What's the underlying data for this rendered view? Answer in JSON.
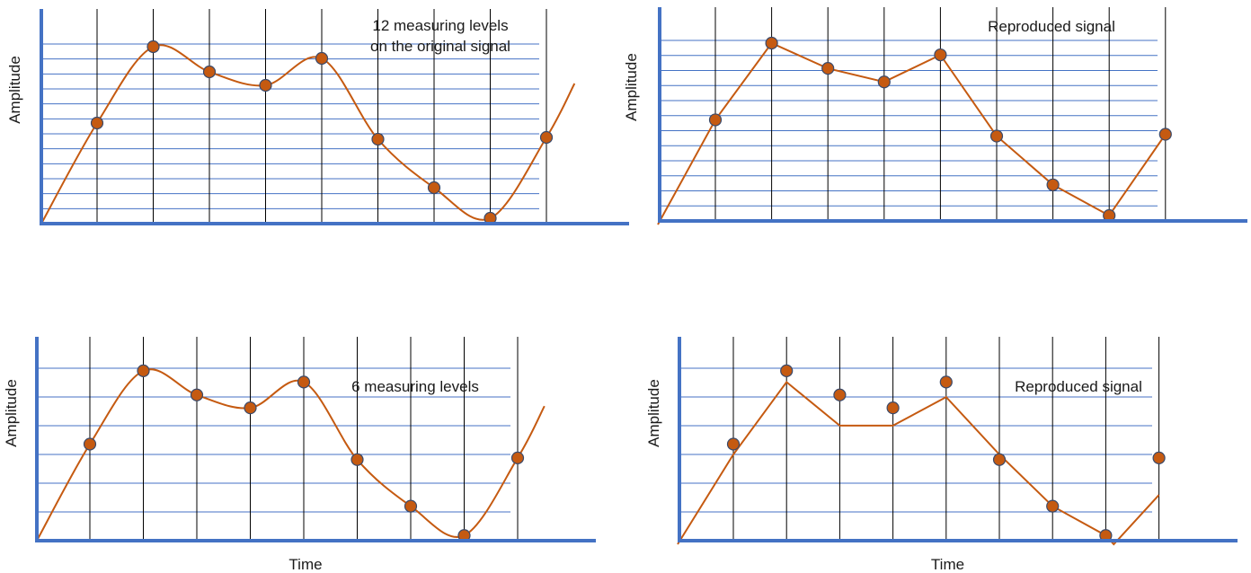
{
  "colors": {
    "axis": "#4472c4",
    "level_line": "#4472c4",
    "time_line": "#000000",
    "signal": "#c55a11",
    "marker_fill": "#c55a11",
    "marker_stroke": "#3a4a6b"
  },
  "labels": {
    "y_axis": "Amplitude",
    "x_axis": "Time"
  },
  "panels": [
    {
      "id": "original-12",
      "annotation_lines": [
        "12 measuring levels",
        "on the original signal"
      ],
      "levels": 12,
      "signal": "smooth",
      "samples": [
        0.56,
        0.985,
        0.845,
        0.77,
        0.92,
        0.47,
        0.2,
        0.03,
        0.48
      ]
    },
    {
      "id": "reproduced-12",
      "annotation_lines": [
        "Reproduced signal"
      ],
      "levels": 12,
      "signal": "polyline-through-samples",
      "samples": [
        0.56,
        0.985,
        0.845,
        0.77,
        0.92,
        0.47,
        0.2,
        0.03,
        0.48
      ]
    },
    {
      "id": "original-6",
      "annotation_lines": [
        "6 measuring levels"
      ],
      "levels": 6,
      "signal": "smooth",
      "samples": [
        0.56,
        0.985,
        0.845,
        0.77,
        0.92,
        0.47,
        0.2,
        0.03,
        0.48
      ]
    },
    {
      "id": "reproduced-6",
      "annotation_lines": [
        "Reproduced signal"
      ],
      "levels": 6,
      "signal": "polyline-quantized",
      "samples": [
        0.56,
        0.985,
        0.845,
        0.77,
        0.92,
        0.47,
        0.2,
        0.03,
        0.48
      ],
      "quantized": [
        0.5,
        0.92,
        0.667,
        0.667,
        0.833,
        0.5,
        0.2,
        0.03,
        0.265
      ]
    }
  ]
}
